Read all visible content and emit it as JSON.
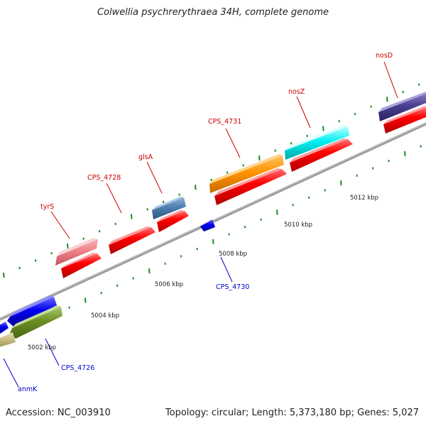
{
  "title": "Colwellia psychrerythraea 34H, complete genome",
  "footer": {
    "accession": "Accession: NC_003910",
    "stats": "Topology: circular; Length: 5,373,180 bp; Genes: 5,027"
  },
  "colors": {
    "backbone": "#8a8a8a",
    "tick": "#1f8a1f",
    "cds_forward": "#ff0000",
    "label_forward": "#cc0000",
    "label_reverse": "#0000cc"
  },
  "scale_labels": [
    "5002 kbp",
    "5004 kbp",
    "5006 kbp",
    "5008 kbp",
    "5010 kbp",
    "5012 kbp"
  ],
  "gene_labels": {
    "tyrS": "tyrS",
    "cps4728": "CPS_4728",
    "glsA": "glsA",
    "cps4731": "CPS_4731",
    "nosZ": "nosZ",
    "nosD": "nosD",
    "cps4730": "CPS_4730",
    "cps4726": "CPS_4726",
    "anmK": "anmK"
  }
}
